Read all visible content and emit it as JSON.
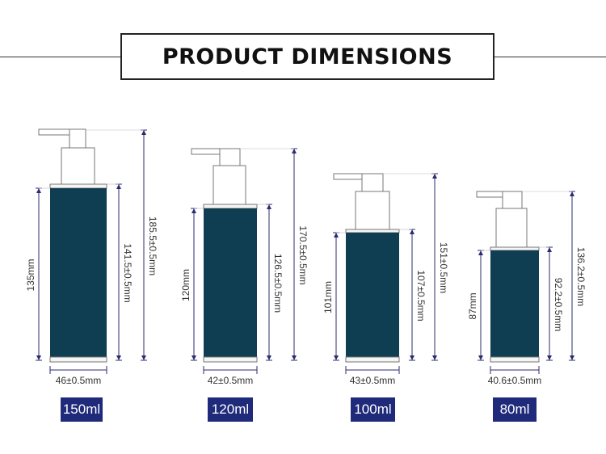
{
  "header": {
    "title": "PRODUCT DIMENSIONS"
  },
  "colors": {
    "bottle_body": "#0f3d52",
    "pump": "#ffffff",
    "dim_line": "#2b2b6e",
    "badge": "#1f2a7a"
  },
  "bottles": [
    {
      "capacity": "150ml",
      "width_label": "46±0.5mm",
      "body_height_label": "135mm",
      "shoulder_height_label": "141.5±0.5mm",
      "total_height_label": "185.5±0.5mm"
    },
    {
      "capacity": "120ml",
      "width_label": "42±0.5mm",
      "body_height_label": "120mm",
      "shoulder_height_label": "126.5±0.5mm",
      "total_height_label": "170.5±0.5mm"
    },
    {
      "capacity": "100ml",
      "width_label": "43±0.5mm",
      "body_height_label": "101mm",
      "shoulder_height_label": "107±0.5mm",
      "total_height_label": "151±0.5mm"
    },
    {
      "capacity": "80ml",
      "width_label": "40.6±0.5mm",
      "body_height_label": "87mm",
      "shoulder_height_label": "92.2±0.5mm",
      "total_height_label": "136.2±0.5mm"
    }
  ]
}
